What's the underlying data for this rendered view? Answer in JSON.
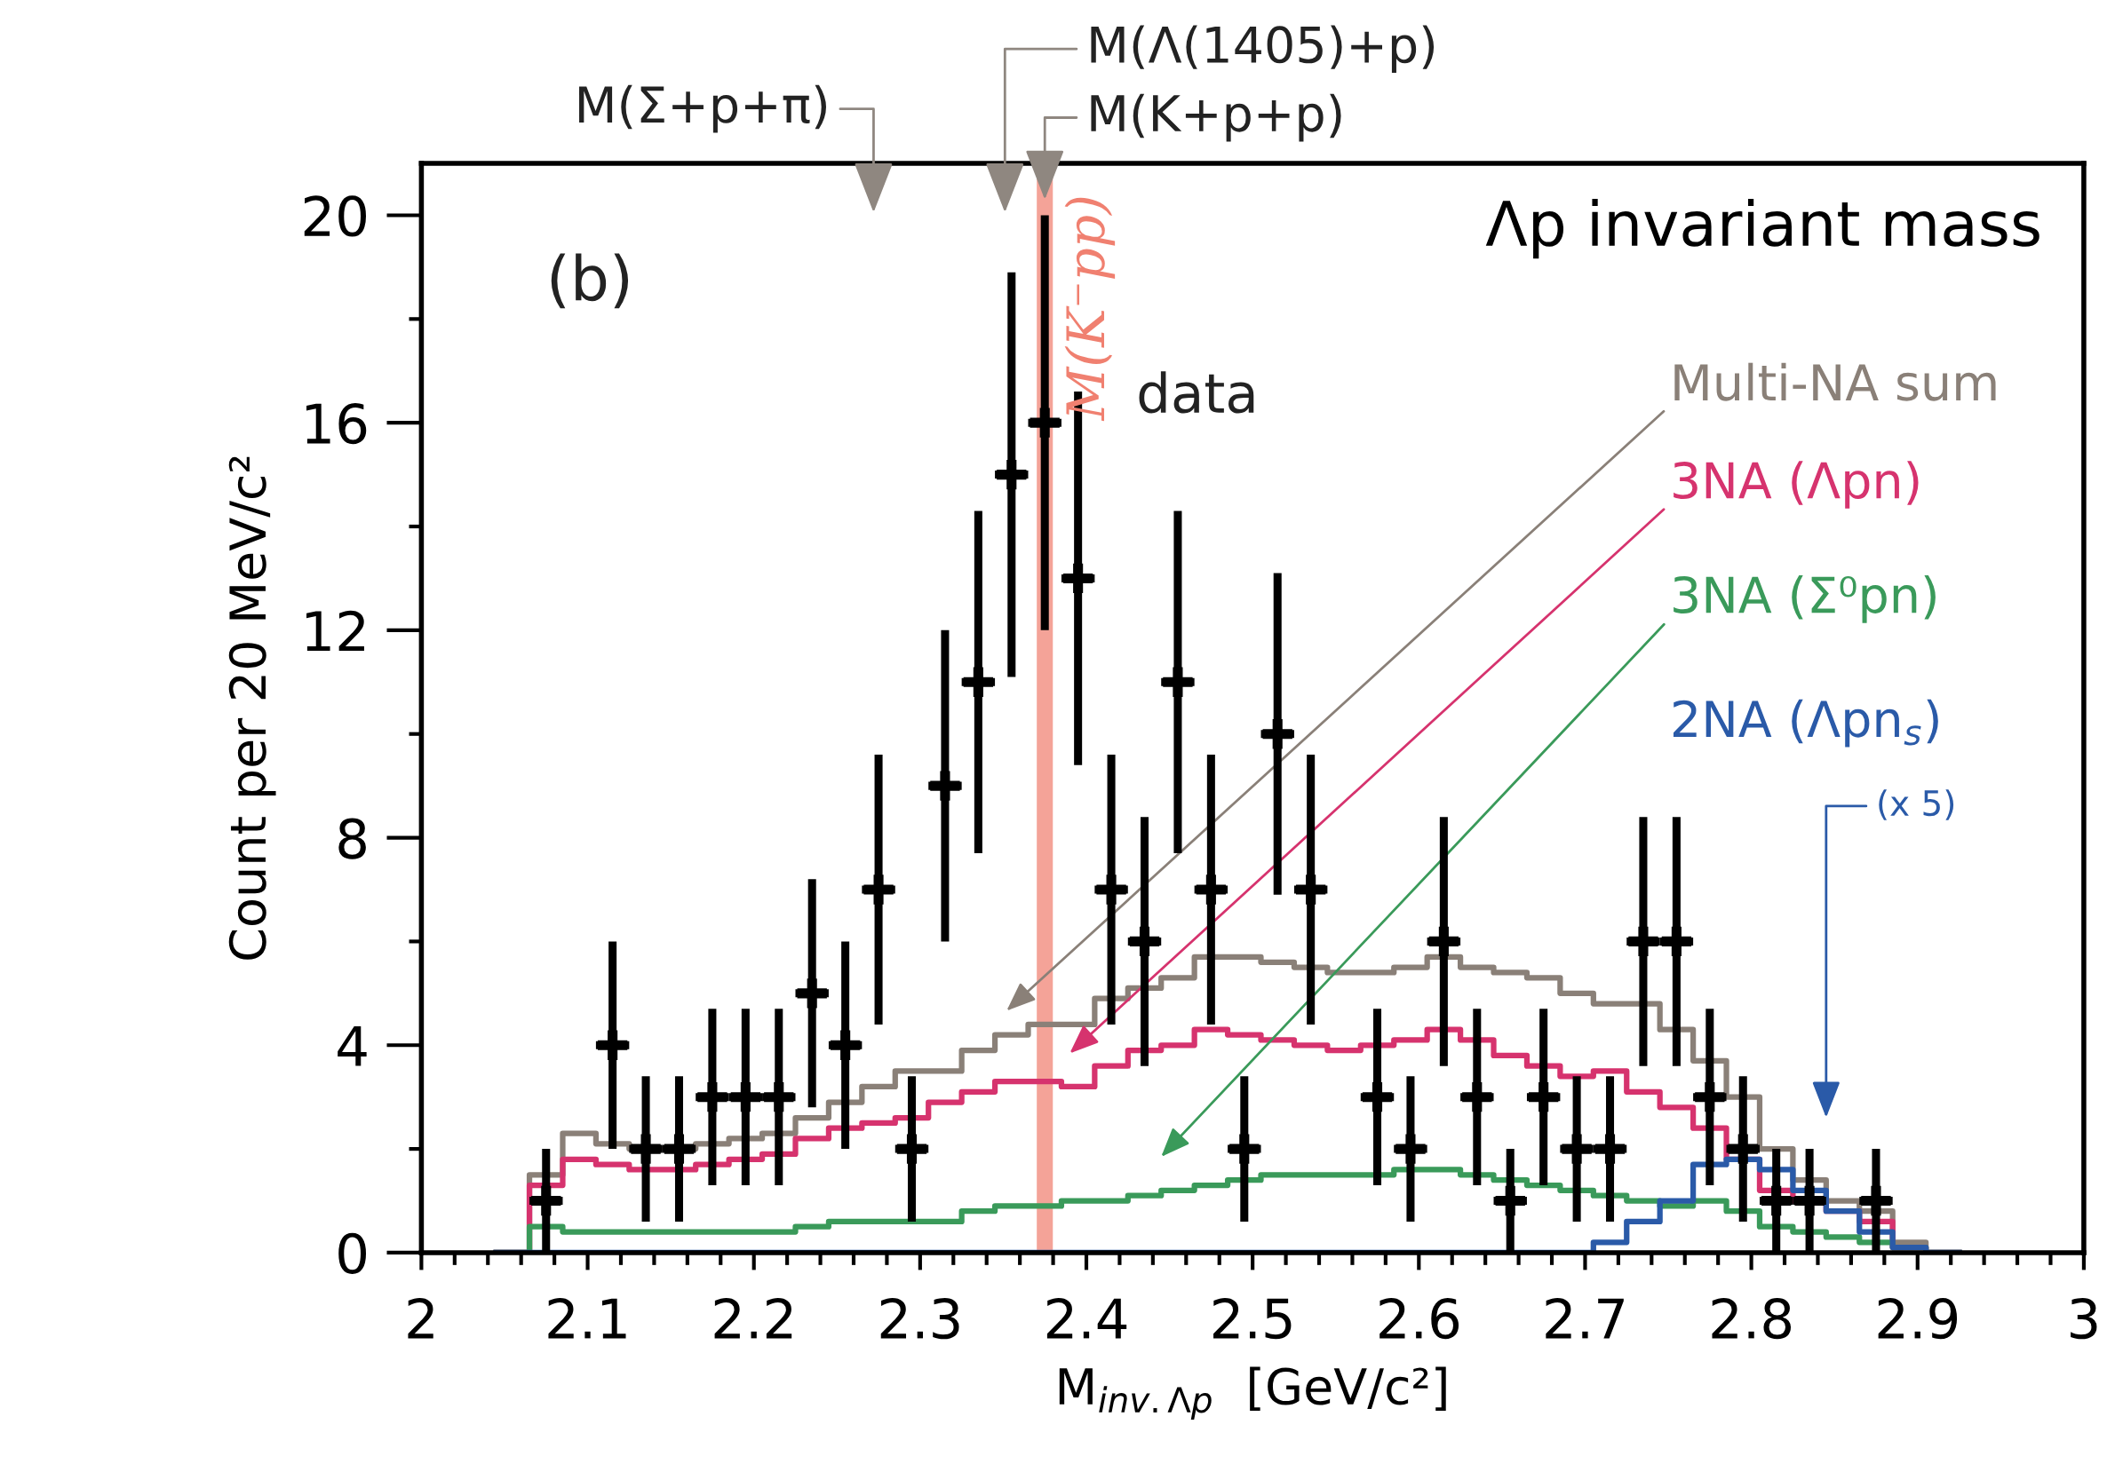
{
  "chart_data": {
    "type": "histogram",
    "title": "Λp invariant mass",
    "xlabel": "M$_{inv.Λp}$  [GeV/c²]",
    "ylabel": "Count per 20 MeV/c²",
    "bins": [
      2.045,
      2.065,
      2.085,
      2.105,
      2.125,
      2.145,
      2.165,
      2.185,
      2.205,
      2.225,
      2.245,
      2.265,
      2.285,
      2.305,
      2.325,
      2.345,
      2.365,
      2.385,
      2.405,
      2.425,
      2.445,
      2.465,
      2.485,
      2.505,
      2.525,
      2.545,
      2.565,
      2.585,
      2.605,
      2.625,
      2.645,
      2.665,
      2.685,
      2.705,
      2.725,
      2.745,
      2.765,
      2.785,
      2.805,
      2.825,
      2.845,
      2.865,
      2.885,
      2.905,
      2.925
    ],
    "series": [
      {
        "name": "Multi-NA sum",
        "type": "histogram",
        "color": "#8a8078",
        "values": [
          0,
          1.5,
          2.3,
          2.1,
          2.0,
          2.0,
          2.1,
          2.2,
          2.3,
          2.6,
          2.9,
          3.2,
          3.5,
          3.5,
          3.9,
          4.2,
          4.4,
          4.4,
          4.9,
          5.1,
          5.3,
          5.7,
          5.7,
          5.6,
          5.5,
          5.4,
          5.4,
          5.5,
          5.7,
          5.5,
          5.4,
          5.3,
          5.0,
          4.8,
          4.8,
          4.3,
          3.7,
          3.0,
          2.0,
          1.4,
          1.0,
          0.8,
          0.2,
          0
        ]
      },
      {
        "name": "3NA (Λpn)",
        "type": "histogram",
        "color": "#d6336e",
        "values": [
          0,
          1.3,
          1.8,
          1.7,
          1.6,
          1.6,
          1.7,
          1.8,
          1.9,
          2.2,
          2.4,
          2.5,
          2.6,
          2.9,
          3.1,
          3.3,
          3.3,
          3.2,
          3.6,
          3.9,
          4.0,
          4.3,
          4.2,
          4.1,
          4.0,
          3.9,
          4.0,
          4.1,
          4.3,
          4.1,
          3.8,
          3.6,
          3.4,
          3.5,
          3.1,
          2.8,
          2.4,
          1.8,
          1.2,
          1.0,
          0.8,
          0.6,
          0.1,
          0
        ]
      },
      {
        "name": "3NA (Σ⁰pn)",
        "type": "histogram",
        "color": "#3a9a5a",
        "values": [
          0,
          0.5,
          0.4,
          0.4,
          0.4,
          0.4,
          0.4,
          0.4,
          0.4,
          0.5,
          0.6,
          0.6,
          0.6,
          0.6,
          0.8,
          0.9,
          0.9,
          1.0,
          1.0,
          1.1,
          1.2,
          1.3,
          1.4,
          1.5,
          1.5,
          1.5,
          1.5,
          1.6,
          1.6,
          1.5,
          1.4,
          1.3,
          1.2,
          1.1,
          1.0,
          0.9,
          1.0,
          0.8,
          0.5,
          0.4,
          0.3,
          0.2,
          0.1,
          0
        ]
      },
      {
        "name": "2NA (Λpn$_{s}$)",
        "type": "histogram",
        "color": "#2a5aa8",
        "values": [
          0,
          0,
          0,
          0,
          0,
          0,
          0,
          0,
          0,
          0,
          0,
          0,
          0,
          0,
          0,
          0,
          0,
          0,
          0,
          0,
          0,
          0,
          0,
          0,
          0,
          0,
          0,
          0,
          0,
          0,
          0,
          0,
          0,
          0.2,
          0.6,
          1.0,
          1.7,
          1.8,
          1.6,
          1.2,
          0.8,
          0.4,
          0.1,
          0
        ]
      },
      {
        "name": "data",
        "type": "scatter",
        "color": "#000000",
        "marker": "cross",
        "x": [
          2.075,
          2.115,
          2.135,
          2.155,
          2.175,
          2.195,
          2.215,
          2.235,
          2.255,
          2.275,
          2.295,
          2.315,
          2.335,
          2.355,
          2.375,
          2.395,
          2.415,
          2.435,
          2.455,
          2.475,
          2.495,
          2.515,
          2.535,
          2.575,
          2.595,
          2.615,
          2.635,
          2.655,
          2.675,
          2.695,
          2.715,
          2.735,
          2.755,
          2.775,
          2.795,
          2.815,
          2.835,
          2.875
        ],
        "values": [
          1,
          4,
          2,
          2,
          3,
          3,
          3,
          5,
          4,
          7,
          2,
          9,
          11,
          15,
          16,
          13,
          7,
          6,
          11,
          7,
          2,
          10,
          7,
          3,
          2,
          6,
          3,
          1,
          3,
          2,
          2,
          6,
          6,
          3,
          2,
          1,
          1,
          1
        ],
        "errors": [
          [
            0,
            2
          ],
          [
            2,
            6
          ],
          [
            0.6,
            3.4
          ],
          [
            0.6,
            3.4
          ],
          [
            1.3,
            4.7
          ],
          [
            1.3,
            4.7
          ],
          [
            1.3,
            4.7
          ],
          [
            2.8,
            7.2
          ],
          [
            2,
            6
          ],
          [
            4.4,
            9.6
          ],
          [
            0.6,
            3.4
          ],
          [
            6,
            12
          ],
          [
            7.7,
            14.3
          ],
          [
            11.1,
            18.9
          ],
          [
            12,
            20
          ],
          [
            9.4,
            16.6
          ],
          [
            4.4,
            9.6
          ],
          [
            3.6,
            8.4
          ],
          [
            7.7,
            14.3
          ],
          [
            4.4,
            9.6
          ],
          [
            0.6,
            3.4
          ],
          [
            6.9,
            13.1
          ],
          [
            4.4,
            9.6
          ],
          [
            1.3,
            4.7
          ],
          [
            0.6,
            3.4
          ],
          [
            3.6,
            8.4
          ],
          [
            1.3,
            4.7
          ],
          [
            0,
            2
          ],
          [
            1.3,
            4.7
          ],
          [
            0.6,
            3.4
          ],
          [
            0.6,
            3.4
          ],
          [
            3.6,
            8.4
          ],
          [
            3.6,
            8.4
          ],
          [
            1.3,
            4.7
          ],
          [
            0.6,
            3.4
          ],
          [
            0,
            2
          ],
          [
            0,
            2
          ],
          [
            0,
            2
          ]
        ],
        "xerrors": [
          0.01,
          0.01,
          0.01,
          0.01,
          0.01,
          0.01,
          0.01,
          0.01,
          0.01,
          0.01,
          0.01,
          0.01,
          0.01,
          0.01,
          0.01,
          0.01,
          0.01,
          0.01,
          0.01,
          0.01,
          0.01,
          0.01,
          0.01,
          0.01,
          0.01,
          0.01,
          0.01,
          0.01,
          0.01,
          0.01,
          0.01,
          0.01,
          0.01,
          0.01,
          0.01,
          0.01,
          0.01,
          0.01
        ]
      }
    ],
    "annotations": [
      "(b)",
      "M(Σ+p+π)",
      "M(Λ(1405)+p)",
      {
        "text": "M(K+p+p)",
        "x": 2.375,
        "y": 20.3
      },
      "(x 5)"
    ],
    "ref_lines": [
      {
        "axis": "x",
        "value": 2.375,
        "label": "M(K⁻pp)",
        "color": "#f08070"
      }
    ],
    "xlim": [
      2,
      3
    ],
    "ylim": [
      0,
      21
    ],
    "xticks": [
      2,
      {
        "value": 2.02,
        "label": null
      },
      {
        "value": 2.04,
        "label": null
      },
      {
        "value": 2.06,
        "label": null
      },
      {
        "value": 2.08,
        "label": null
      },
      2.1,
      {
        "value": 2.12,
        "label": null
      },
      {
        "value": 2.14,
        "label": null
      },
      {
        "value": 2.16,
        "label": null
      },
      {
        "value": 2.18,
        "label": null
      },
      2.2,
      {
        "value": 2.22,
        "label": null
      },
      {
        "value": 2.24,
        "label": null
      },
      {
        "value": 2.26,
        "label": null
      },
      {
        "value": 2.28,
        "label": null
      },
      2.3,
      {
        "value": 2.32,
        "label": null
      },
      {
        "value": 2.34,
        "label": null
      },
      {
        "value": 2.36,
        "label": null
      },
      {
        "value": 2.38,
        "label": null
      },
      2.4,
      {
        "value": 2.42,
        "label": null
      },
      {
        "value": 2.44,
        "label": null
      },
      {
        "value": 2.46,
        "label": null
      },
      {
        "value": 2.48,
        "label": null
      },
      2.5,
      {
        "value": 2.52,
        "label": null
      },
      {
        "value": 2.54,
        "label": null
      },
      {
        "value": 2.56,
        "label": null
      },
      {
        "value": 2.58,
        "label": null
      },
      2.6,
      {
        "value": 2.62,
        "label": null
      },
      {
        "value": 2.64,
        "label": null
      },
      {
        "value": 2.66,
        "label": null
      },
      {
        "value": 2.68,
        "label": null
      },
      2.7,
      {
        "value": 2.72,
        "label": null
      },
      {
        "value": 2.74,
        "label": null
      },
      {
        "value": 2.76,
        "label": null
      },
      {
        "value": 2.78,
        "label": null
      },
      2.8,
      {
        "value": 2.82,
        "label": null
      },
      {
        "value": 2.84,
        "label": null
      },
      {
        "value": 2.86,
        "label": null
      },
      {
        "value": 2.88,
        "label": null
      },
      2.9,
      {
        "value": 2.92,
        "label": null
      },
      {
        "value": 2.94,
        "label": null
      },
      {
        "value": 2.96,
        "label": null
      },
      {
        "value": 2.98,
        "label": null
      },
      3
    ],
    "yticks": [
      0,
      {
        "value": 2,
        "label": null
      },
      4,
      {
        "value": 6,
        "label": null
      },
      8,
      {
        "value": 10,
        "label": null
      },
      12,
      {
        "value": 14,
        "label": null
      },
      16,
      {
        "value": 18,
        "label": null
      },
      20
    ],
    "grid": false,
    "legend": false
  }
}
